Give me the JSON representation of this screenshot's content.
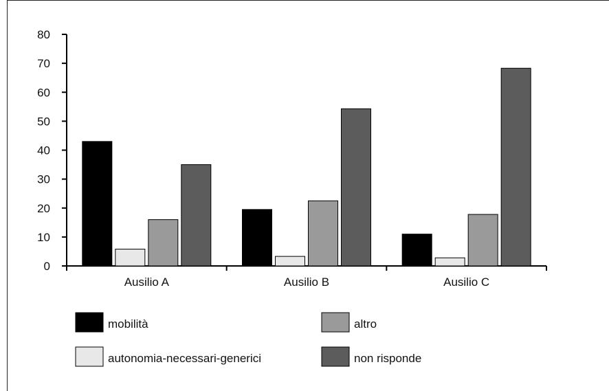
{
  "chart_data": {
    "type": "bar",
    "categories": [
      "Ausilio A",
      "Ausilio B",
      "Ausilio C"
    ],
    "series": [
      {
        "name": "mobilità",
        "values": [
          43,
          19.5,
          11
        ],
        "color": "#000000"
      },
      {
        "name": "autonomia-necessari-generici",
        "values": [
          5.8,
          3.3,
          2.8
        ],
        "color": "#e8e8e8"
      },
      {
        "name": "altro",
        "values": [
          16,
          22.5,
          17.8
        ],
        "color": "#9a9a9a"
      },
      {
        "name": "non risponde",
        "values": [
          35,
          54.3,
          68.3
        ],
        "color": "#5c5c5c"
      }
    ],
    "title": "",
    "xlabel": "",
    "ylabel": "",
    "ylim": [
      0,
      80
    ],
    "yticks": [
      "0",
      "10",
      "20",
      "30",
      "40",
      "50",
      "60",
      "70",
      "80"
    ],
    "grid": false,
    "legend_position": "bottom"
  }
}
